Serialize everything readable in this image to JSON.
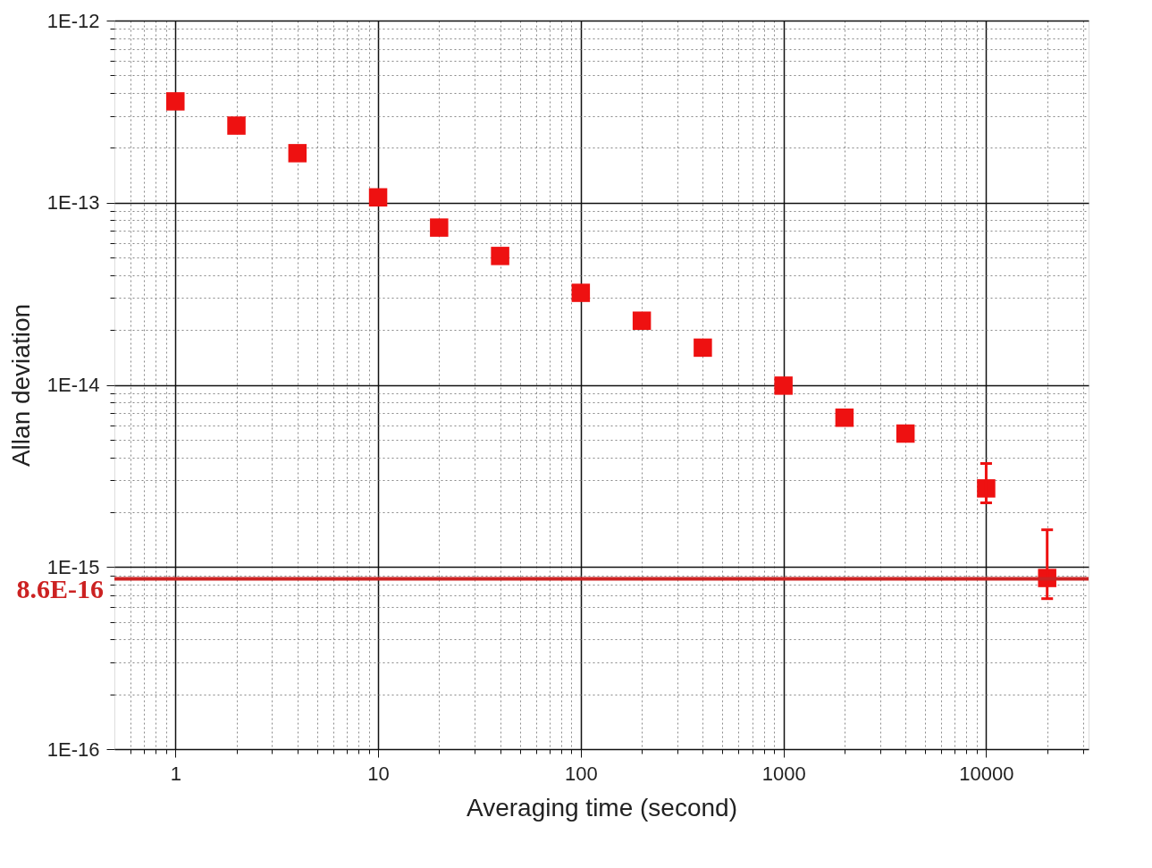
{
  "chart_data": {
    "type": "scatter",
    "xlabel": "Averaging time (second)",
    "ylabel": "Allan deviation",
    "x": [
      1,
      2,
      4,
      10,
      20,
      40,
      100,
      200,
      400,
      1000,
      2000,
      4000,
      10000,
      20000
    ],
    "series": [
      {
        "color": "#ee1111",
        "values": [
          3.6e-13,
          2.65e-13,
          1.87e-13,
          1.07e-13,
          7.3e-14,
          5.1e-14,
          3.2e-14,
          2.25e-14,
          1.6e-14,
          9.9e-15,
          6.6e-15,
          5.4e-15,
          2.7e-15,
          8.7e-16
        ],
        "errors": [
          null,
          null,
          null,
          null,
          null,
          null,
          null,
          null,
          null,
          null,
          null,
          null,
          [
            2.25e-15,
            3.7e-15
          ],
          [
            6.7e-16,
            1.6e-15
          ]
        ]
      }
    ],
    "marker": "square",
    "log": "xy",
    "grid": true,
    "xlim": [
      0.5,
      32000
    ],
    "ylim": [
      1e-16,
      1e-12
    ],
    "xticks": [
      {
        "value": 0.6,
        "label": null
      },
      {
        "value": 0.7,
        "label": null
      },
      {
        "value": 0.8,
        "label": null
      },
      {
        "value": 0.9,
        "label": null
      },
      1,
      {
        "value": 2,
        "label": null
      },
      {
        "value": 3,
        "label": null
      },
      {
        "value": 4,
        "label": null
      },
      {
        "value": 5,
        "label": null
      },
      {
        "value": 6,
        "label": null
      },
      {
        "value": 7,
        "label": null
      },
      {
        "value": 8,
        "label": null
      },
      {
        "value": 9,
        "label": null
      },
      10,
      {
        "value": 20,
        "label": null
      },
      {
        "value": 30,
        "label": null
      },
      {
        "value": 40,
        "label": null
      },
      {
        "value": 50,
        "label": null
      },
      {
        "value": 60,
        "label": null
      },
      {
        "value": 70,
        "label": null
      },
      {
        "value": 80,
        "label": null
      },
      {
        "value": 90,
        "label": null
      },
      100,
      {
        "value": 200,
        "label": null
      },
      {
        "value": 300,
        "label": null
      },
      {
        "value": 400,
        "label": null
      },
      {
        "value": 500,
        "label": null
      },
      {
        "value": 600,
        "label": null
      },
      {
        "value": 700,
        "label": null
      },
      {
        "value": 800,
        "label": null
      },
      {
        "value": 900,
        "label": null
      },
      1000,
      {
        "value": 2000,
        "label": null
      },
      {
        "value": 3000,
        "label": null
      },
      {
        "value": 4000,
        "label": null
      },
      {
        "value": 5000,
        "label": null
      },
      {
        "value": 6000,
        "label": null
      },
      {
        "value": 7000,
        "label": null
      },
      {
        "value": 8000,
        "label": null
      },
      {
        "value": 9000,
        "label": null
      },
      10000,
      {
        "value": 20000,
        "label": null
      },
      {
        "value": 30000,
        "label": null
      }
    ],
    "yticks": [
      {
        "value": 1e-16,
        "label": "1E-16"
      },
      {
        "value": 2e-16,
        "label": null
      },
      {
        "value": 3e-16,
        "label": null
      },
      {
        "value": 4e-16,
        "label": null
      },
      {
        "value": 5e-16,
        "label": null
      },
      {
        "value": 6e-16,
        "label": null
      },
      {
        "value": 7e-16,
        "label": null
      },
      {
        "value": 8e-16,
        "label": null
      },
      {
        "value": 9e-16,
        "label": null
      },
      {
        "value": 1e-15,
        "label": "1E-15"
      },
      {
        "value": 2e-15,
        "label": null
      },
      {
        "value": 3e-15,
        "label": null
      },
      {
        "value": 4e-15,
        "label": null
      },
      {
        "value": 5e-15,
        "label": null
      },
      {
        "value": 6e-15,
        "label": null
      },
      {
        "value": 7e-15,
        "label": null
      },
      {
        "value": 8e-15,
        "label": null
      },
      {
        "value": 9e-15,
        "label": null
      },
      {
        "value": 1e-14,
        "label": "1E-14"
      },
      {
        "value": 2e-14,
        "label": null
      },
      {
        "value": 3e-14,
        "label": null
      },
      {
        "value": 4e-14,
        "label": null
      },
      {
        "value": 5e-14,
        "label": null
      },
      {
        "value": 6e-14,
        "label": null
      },
      {
        "value": 7e-14,
        "label": null
      },
      {
        "value": 8e-14,
        "label": null
      },
      {
        "value": 9e-14,
        "label": null
      },
      {
        "value": 1e-13,
        "label": "1E-13"
      },
      {
        "value": 2e-13,
        "label": null
      },
      {
        "value": 3e-13,
        "label": null
      },
      {
        "value": 4e-13,
        "label": null
      },
      {
        "value": 5e-13,
        "label": null
      },
      {
        "value": 6e-13,
        "label": null
      },
      {
        "value": 7e-13,
        "label": null
      },
      {
        "value": 8e-13,
        "label": null
      },
      {
        "value": 9e-13,
        "label": null
      },
      {
        "value": 1e-12,
        "label": "1E-12"
      }
    ],
    "ref_lines": [
      {
        "axis": "y",
        "value": 8.6e-16,
        "label": "8.6E-16",
        "color": "#cc2222"
      }
    ]
  }
}
